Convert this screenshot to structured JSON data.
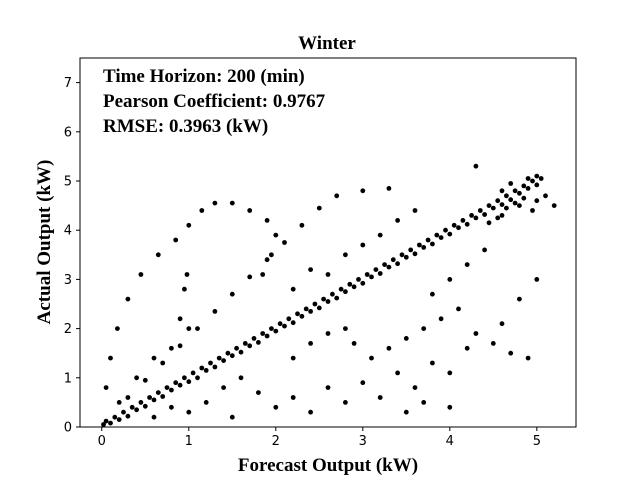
{
  "chart_data": {
    "type": "scatter",
    "title": "Winter",
    "xlabel": "Forecast Output (kW)",
    "ylabel": "Actual Output (kW)",
    "xlim": [
      -0.25,
      5.45
    ],
    "ylim": [
      0,
      7.5
    ],
    "xticks": [
      0,
      1,
      2,
      3,
      4,
      5
    ],
    "yticks": [
      0,
      1,
      2,
      3,
      4,
      5,
      6,
      7
    ],
    "grid": false,
    "marker_color": "#000000",
    "annotations": [
      "Time Horizon: 200 (min)",
      "Pearson Coefficient: 0.9767",
      "RMSE: 0.3963 (kW)"
    ],
    "series": [
      {
        "points": [
          [
            0.02,
            0.05
          ],
          [
            0.05,
            0.12
          ],
          [
            0.1,
            0.08
          ],
          [
            0.15,
            0.2
          ],
          [
            0.2,
            0.15
          ],
          [
            0.25,
            0.3
          ],
          [
            0.3,
            0.22
          ],
          [
            0.35,
            0.4
          ],
          [
            0.4,
            0.35
          ],
          [
            0.45,
            0.5
          ],
          [
            0.5,
            0.42
          ],
          [
            0.55,
            0.6
          ],
          [
            0.6,
            0.55
          ],
          [
            0.65,
            0.7
          ],
          [
            0.7,
            0.62
          ],
          [
            0.75,
            0.8
          ],
          [
            0.8,
            0.75
          ],
          [
            0.85,
            0.9
          ],
          [
            0.9,
            0.85
          ],
          [
            0.95,
            1.0
          ],
          [
            1.0,
            0.92
          ],
          [
            1.05,
            1.1
          ],
          [
            1.1,
            1.0
          ],
          [
            1.15,
            1.2
          ],
          [
            1.2,
            1.15
          ],
          [
            1.25,
            1.3
          ],
          [
            1.3,
            1.22
          ],
          [
            1.35,
            1.4
          ],
          [
            1.4,
            1.35
          ],
          [
            1.45,
            1.5
          ],
          [
            1.5,
            1.45
          ],
          [
            1.55,
            1.6
          ],
          [
            1.6,
            1.52
          ],
          [
            1.65,
            1.7
          ],
          [
            1.7,
            1.65
          ],
          [
            1.75,
            1.8
          ],
          [
            1.8,
            1.72
          ],
          [
            1.85,
            1.9
          ],
          [
            1.9,
            1.85
          ],
          [
            1.95,
            2.0
          ],
          [
            2.0,
            1.95
          ],
          [
            2.05,
            2.1
          ],
          [
            2.1,
            2.05
          ],
          [
            2.15,
            2.2
          ],
          [
            2.2,
            2.12
          ],
          [
            2.25,
            2.3
          ],
          [
            2.3,
            2.25
          ],
          [
            2.35,
            2.4
          ],
          [
            2.4,
            2.35
          ],
          [
            2.45,
            2.5
          ],
          [
            2.5,
            2.42
          ],
          [
            2.55,
            2.6
          ],
          [
            2.6,
            2.55
          ],
          [
            2.65,
            2.7
          ],
          [
            2.7,
            2.62
          ],
          [
            2.75,
            2.8
          ],
          [
            2.8,
            2.75
          ],
          [
            2.85,
            2.9
          ],
          [
            2.9,
            2.85
          ],
          [
            2.95,
            3.0
          ],
          [
            3.0,
            2.92
          ],
          [
            3.05,
            3.1
          ],
          [
            3.1,
            3.05
          ],
          [
            3.15,
            3.2
          ],
          [
            3.2,
            3.12
          ],
          [
            3.25,
            3.3
          ],
          [
            3.3,
            3.25
          ],
          [
            3.35,
            3.4
          ],
          [
            3.4,
            3.32
          ],
          [
            3.45,
            3.5
          ],
          [
            3.5,
            3.45
          ],
          [
            3.55,
            3.6
          ],
          [
            3.6,
            3.52
          ],
          [
            3.65,
            3.7
          ],
          [
            3.7,
            3.65
          ],
          [
            3.75,
            3.8
          ],
          [
            3.8,
            3.72
          ],
          [
            3.85,
            3.9
          ],
          [
            3.9,
            3.85
          ],
          [
            3.95,
            4.0
          ],
          [
            4.0,
            3.92
          ],
          [
            4.05,
            4.1
          ],
          [
            4.1,
            4.05
          ],
          [
            4.15,
            4.2
          ],
          [
            4.2,
            4.12
          ],
          [
            4.25,
            4.3
          ],
          [
            4.3,
            4.25
          ],
          [
            4.35,
            4.4
          ],
          [
            4.4,
            4.32
          ],
          [
            4.45,
            4.5
          ],
          [
            4.5,
            4.45
          ],
          [
            4.55,
            4.6
          ],
          [
            4.6,
            4.52
          ],
          [
            4.65,
            4.7
          ],
          [
            4.7,
            4.62
          ],
          [
            4.75,
            4.8
          ],
          [
            4.8,
            4.75
          ],
          [
            4.85,
            4.9
          ],
          [
            4.9,
            4.85
          ],
          [
            4.95,
            5.0
          ],
          [
            5.0,
            4.92
          ],
          [
            5.05,
            5.05
          ],
          [
            0.3,
            0.6
          ],
          [
            0.5,
            0.95
          ],
          [
            0.7,
            1.3
          ],
          [
            0.9,
            1.65
          ],
          [
            1.1,
            2.0
          ],
          [
            1.3,
            2.35
          ],
          [
            1.5,
            2.7
          ],
          [
            1.7,
            3.05
          ],
          [
            1.9,
            3.4
          ],
          [
            2.1,
            3.75
          ],
          [
            2.3,
            4.1
          ],
          [
            2.5,
            4.45
          ],
          [
            2.7,
            4.7
          ],
          [
            3.0,
            4.8
          ],
          [
            3.3,
            4.85
          ],
          [
            0.05,
            0.8
          ],
          [
            0.1,
            1.4
          ],
          [
            0.18,
            2.0
          ],
          [
            0.3,
            2.6
          ],
          [
            0.45,
            3.1
          ],
          [
            0.65,
            3.5
          ],
          [
            0.85,
            3.8
          ],
          [
            1.0,
            4.1
          ],
          [
            1.15,
            4.4
          ],
          [
            1.3,
            4.55
          ],
          [
            1.5,
            4.55
          ],
          [
            1.7,
            4.4
          ],
          [
            1.9,
            4.2
          ],
          [
            2.0,
            3.9
          ],
          [
            1.95,
            3.5
          ],
          [
            1.85,
            3.1
          ],
          [
            0.8,
            1.6
          ],
          [
            0.9,
            2.2
          ],
          [
            0.95,
            2.8
          ],
          [
            0.98,
            3.1
          ],
          [
            1.0,
            2.0
          ],
          [
            2.0,
            0.4
          ],
          [
            2.2,
            0.6
          ],
          [
            2.4,
            0.3
          ],
          [
            2.6,
            0.8
          ],
          [
            2.8,
            0.5
          ],
          [
            3.0,
            0.9
          ],
          [
            3.2,
            0.6
          ],
          [
            3.4,
            1.1
          ],
          [
            3.6,
            0.8
          ],
          [
            3.8,
            1.3
          ],
          [
            4.0,
            1.1
          ],
          [
            4.2,
            1.6
          ],
          [
            3.5,
            1.8
          ],
          [
            3.7,
            2.0
          ],
          [
            3.9,
            2.2
          ],
          [
            4.1,
            2.4
          ],
          [
            4.3,
            1.9
          ],
          [
            4.5,
            1.7
          ],
          [
            4.7,
            1.5
          ],
          [
            4.9,
            1.4
          ],
          [
            4.6,
            2.1
          ],
          [
            4.8,
            2.6
          ],
          [
            5.0,
            3.0
          ],
          [
            4.3,
            5.3
          ],
          [
            5.2,
            4.5
          ],
          [
            5.1,
            4.7
          ],
          [
            5.0,
            5.1
          ],
          [
            4.9,
            5.05
          ],
          [
            4.7,
            4.95
          ],
          [
            4.6,
            4.8
          ],
          [
            3.6,
            4.4
          ],
          [
            3.4,
            4.2
          ],
          [
            2.8,
            2.0
          ],
          [
            2.9,
            1.7
          ],
          [
            3.1,
            1.4
          ],
          [
            3.3,
            1.6
          ],
          [
            3.5,
            0.3
          ],
          [
            3.7,
            0.5
          ],
          [
            4.0,
            0.4
          ],
          [
            1.5,
            0.2
          ],
          [
            1.2,
            0.5
          ],
          [
            1.4,
            0.8
          ],
          [
            1.6,
            1.0
          ],
          [
            1.8,
            0.7
          ],
          [
            0.6,
            0.2
          ],
          [
            0.8,
            0.4
          ],
          [
            1.0,
            0.3
          ],
          [
            0.2,
            0.5
          ],
          [
            0.4,
            1.0
          ],
          [
            0.6,
            1.4
          ],
          [
            2.2,
            1.4
          ],
          [
            2.4,
            1.7
          ],
          [
            2.6,
            1.9
          ],
          [
            2.2,
            2.8
          ],
          [
            2.4,
            3.2
          ],
          [
            2.6,
            3.1
          ],
          [
            2.8,
            3.5
          ],
          [
            3.0,
            3.7
          ],
          [
            3.2,
            3.9
          ],
          [
            4.4,
            3.6
          ],
          [
            4.2,
            3.3
          ],
          [
            4.0,
            3.0
          ],
          [
            3.8,
            2.7
          ],
          [
            4.6,
            4.3
          ],
          [
            4.8,
            4.5
          ],
          [
            5.0,
            4.6
          ],
          [
            4.95,
            4.4
          ],
          [
            4.85,
            4.65
          ],
          [
            4.75,
            4.55
          ],
          [
            4.65,
            4.45
          ],
          [
            4.55,
            4.25
          ],
          [
            4.45,
            4.15
          ]
        ]
      }
    ]
  }
}
